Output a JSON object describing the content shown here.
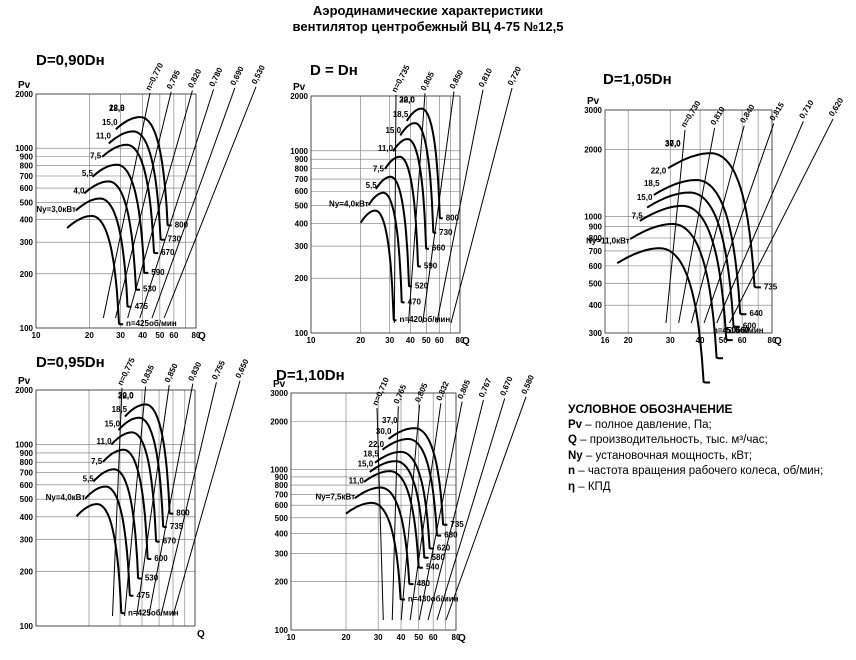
{
  "title_line1": "Аэродинамические характеристики",
  "title_line2": "вентилятор центробежный ВЦ 4-75 №12,5",
  "legend": {
    "heading": "УСЛОВНОЕ ОБОЗНАЧЕНИЕ",
    "items": [
      {
        "sym": "Pv",
        "text": " – полное давление, Па;"
      },
      {
        "sym": "Q",
        "text": " – производительность, тыс. м³/час;"
      },
      {
        "sym": "Ny",
        "text": " – установочная мощность, кВт;"
      },
      {
        "sym": "n",
        "text": " – частота вращения рабочего колеса, об/мин;"
      },
      {
        "sym": "η",
        "text": " – КПД"
      }
    ]
  },
  "chart_data": [
    {
      "title": "D=0,90Dн",
      "ylabel": "Pv",
      "xlabel": "Q",
      "x_ticks": [
        "10",
        "20",
        "30",
        "40",
        "50",
        "60",
        "80"
      ],
      "y_ticks": [
        "100",
        "200",
        "300",
        "400",
        "500",
        "600",
        "700",
        "800",
        "900",
        "1000",
        "2000"
      ],
      "xlim": [
        10,
        80
      ],
      "ylim": [
        100,
        2000
      ],
      "x_scale": "log",
      "y_scale": "log",
      "speeds": [
        425,
        475,
        530,
        590,
        670,
        730,
        800
      ],
      "speed_labels": [
        "n=425об/мин",
        "475",
        "530",
        "590",
        "670",
        "730",
        "800"
      ],
      "power_labels": [
        "Ny=3,0кВт",
        "4,0",
        "5,5",
        "7,5",
        "11,0",
        "15,0",
        "18,5",
        "22,0"
      ],
      "efficiency_labels": [
        "n=0,770",
        "0,795",
        "0,820",
        "0,780",
        "0,690",
        "0,530"
      ],
      "Q_range_at_n_min": [
        15,
        31
      ],
      "Pv_peak_at_n_min": 420
    },
    {
      "title": "D = Dн",
      "ylabel": "Pv",
      "xlabel": "Q",
      "x_ticks": [
        "10",
        "20",
        "30",
        "40",
        "50",
        "60",
        "80"
      ],
      "y_ticks": [
        "100",
        "200",
        "300",
        "400",
        "500",
        "600",
        "700",
        "800",
        "900",
        "1000",
        "2000"
      ],
      "xlim": [
        10,
        80
      ],
      "ylim": [
        100,
        2000
      ],
      "x_scale": "log",
      "y_scale": "log",
      "speeds": [
        420,
        470,
        520,
        590,
        660,
        730,
        800
      ],
      "speed_labels": [
        "n=420об/мин",
        "470",
        "520",
        "590",
        "660",
        "730",
        "800"
      ],
      "power_labels": [
        "Ny=4,0кВт",
        "5,5",
        "7,5",
        "11,0",
        "15,0",
        "18,5",
        "22,0",
        "30,0"
      ],
      "efficiency_labels": [
        "n=0,735",
        "0,805",
        "0,850",
        "0,810",
        "0,720"
      ],
      "Q_range_at_n_min": [
        20,
        33
      ],
      "Pv_peak_at_n_min": 470
    },
    {
      "title": "D=1,05Dн",
      "ylabel": "Pv",
      "xlabel": "Q",
      "x_ticks": [
        "16",
        "20",
        "30",
        "40",
        "50",
        "60",
        "80"
      ],
      "y_ticks": [
        "300",
        "400",
        "500",
        "600",
        "700",
        "800",
        "900",
        "1000",
        "2000",
        "3000"
      ],
      "xlim": [
        16,
        80
      ],
      "ylim": [
        300,
        3000
      ],
      "x_scale": "log",
      "y_scale": "log",
      "speeds": [
        450,
        510,
        560,
        600,
        640,
        735
      ],
      "speed_labels": [
        "n=450об/мин",
        "510",
        "560",
        "600",
        "640",
        "735"
      ],
      "power_labels": [
        "Ny=11,0кВт",
        "7,5",
        "15,0",
        "18,5",
        "22,0",
        "30,0",
        "37,0"
      ],
      "efficiency_labels": [
        "n=0,730",
        "0,810",
        "0,840",
        "0,815",
        "0,710",
        "0,620"
      ],
      "Q_range_at_n_min": [
        18,
        44
      ],
      "Pv_peak_at_n_min": 720
    },
    {
      "title": "D=0,95Dн",
      "ylabel": "Pv",
      "xlabel": "Q",
      "x_ticks": [],
      "y_ticks": [
        "100",
        "200",
        "300",
        "400",
        "500",
        "600",
        "700",
        "800",
        "900",
        "1000",
        "2000"
      ],
      "xlim": [
        10,
        80
      ],
      "ylim": [
        100,
        2000
      ],
      "x_scale": "log",
      "y_scale": "log",
      "speeds": [
        425,
        475,
        530,
        600,
        670,
        735,
        800
      ],
      "speed_labels": [
        "n=425об/мин",
        "475",
        "530",
        "600",
        "670",
        "735",
        "800"
      ],
      "power_labels": [
        "Ny=4,0кВт",
        "5,5",
        "7,5",
        "11,0",
        "15,0",
        "18,5",
        "22,0",
        "30,0"
      ],
      "efficiency_labels": [
        "n=0,775",
        "0,835",
        "0,850",
        "0,830",
        "0,755",
        "0,650"
      ],
      "Q_range_at_n_min": [
        17,
        32
      ],
      "Pv_peak_at_n_min": 470
    },
    {
      "title": "D=1,10Dн",
      "ylabel": "Pv",
      "xlabel": "Q",
      "x_ticks": [
        "10",
        "20",
        "30",
        "40",
        "50",
        "60",
        "80"
      ],
      "y_ticks": [
        "100",
        "200",
        "300",
        "400",
        "500",
        "600",
        "700",
        "800",
        "900",
        "1000",
        "2000",
        "3000"
      ],
      "xlim": [
        10,
        80
      ],
      "ylim": [
        100,
        3000
      ],
      "x_scale": "log",
      "y_scale": "log",
      "speeds": [
        430,
        480,
        540,
        580,
        620,
        680,
        735
      ],
      "speed_labels": [
        "n=430об/мин",
        "480",
        "540",
        "580",
        "620",
        "680",
        "735"
      ],
      "power_labels": [
        "Ny=7,5кВт",
        "11,0",
        "15,0",
        "18,5",
        "22,0",
        "30,0",
        "37,0"
      ],
      "efficiency_labels": [
        "n=0,710",
        "0,765",
        "0,805",
        "0,832",
        "0,805",
        "0,767",
        "0,670",
        "0,580"
      ],
      "Q_range_at_n_min": [
        20,
        42
      ],
      "Pv_peak_at_n_min": 620
    }
  ]
}
